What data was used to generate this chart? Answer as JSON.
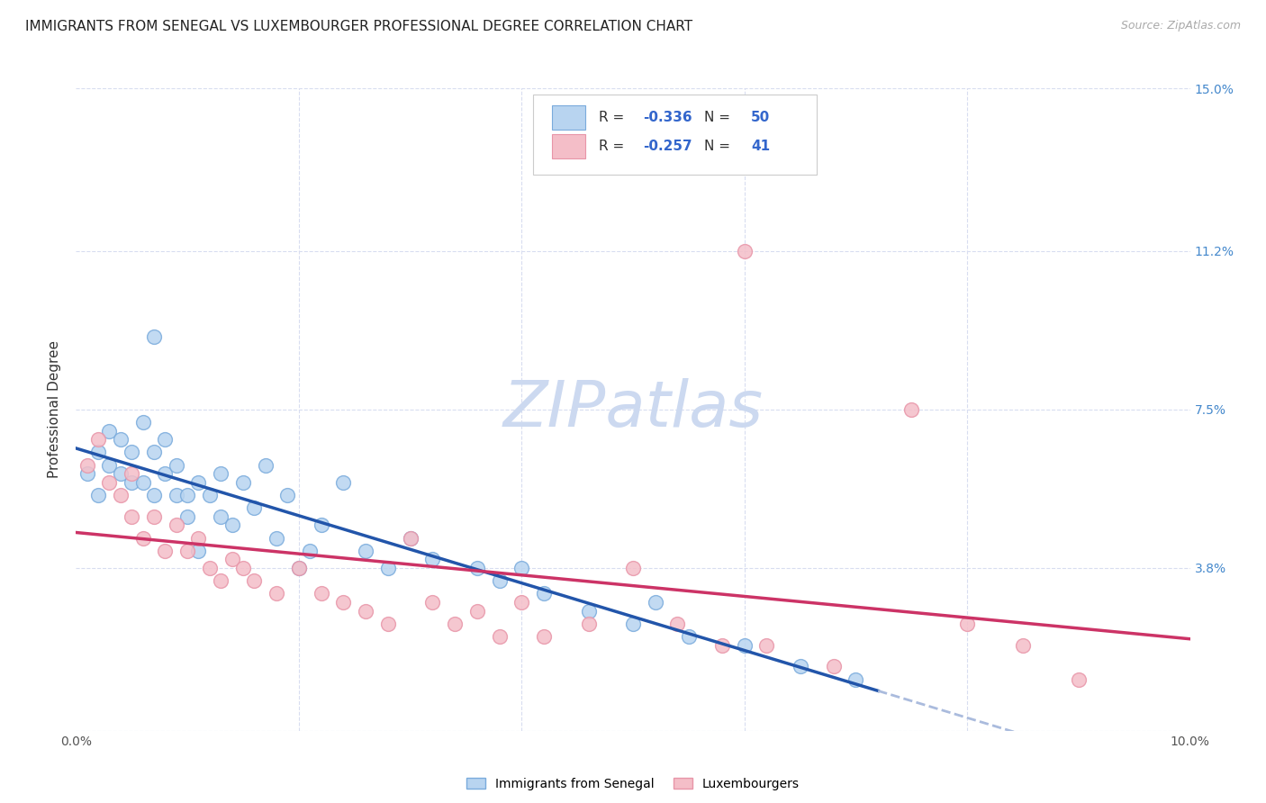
{
  "title": "IMMIGRANTS FROM SENEGAL VS LUXEMBOURGER PROFESSIONAL DEGREE CORRELATION CHART",
  "source": "Source: ZipAtlas.com",
  "ylabel": "Professional Degree",
  "x_min": 0.0,
  "x_max": 0.1,
  "y_min": 0.0,
  "y_max": 0.15,
  "x_ticks": [
    0.0,
    0.02,
    0.04,
    0.06,
    0.08,
    0.1
  ],
  "y_ticks": [
    0.0,
    0.038,
    0.075,
    0.112,
    0.15
  ],
  "y_tick_labels_right": [
    "",
    "3.8%",
    "7.5%",
    "11.2%",
    "15.0%"
  ],
  "legend_entries": [
    {
      "label": "Immigrants from Senegal",
      "color": "#b8d4f0",
      "border": "#7aabdc",
      "R": "-0.336",
      "N": "50"
    },
    {
      "label": "Luxembourgers",
      "color": "#f4bec8",
      "border": "#e895a8",
      "R": "-0.257",
      "N": "41"
    }
  ],
  "watermark": "ZIPatlas",
  "blue_scatter": [
    [
      0.001,
      0.06
    ],
    [
      0.002,
      0.065
    ],
    [
      0.002,
      0.055
    ],
    [
      0.003,
      0.062
    ],
    [
      0.003,
      0.07
    ],
    [
      0.004,
      0.06
    ],
    [
      0.004,
      0.068
    ],
    [
      0.005,
      0.058
    ],
    [
      0.005,
      0.065
    ],
    [
      0.006,
      0.072
    ],
    [
      0.006,
      0.058
    ],
    [
      0.007,
      0.065
    ],
    [
      0.007,
      0.055
    ],
    [
      0.008,
      0.06
    ],
    [
      0.008,
      0.068
    ],
    [
      0.009,
      0.055
    ],
    [
      0.009,
      0.062
    ],
    [
      0.01,
      0.05
    ],
    [
      0.01,
      0.055
    ],
    [
      0.011,
      0.058
    ],
    [
      0.011,
      0.042
    ],
    [
      0.012,
      0.055
    ],
    [
      0.013,
      0.05
    ],
    [
      0.013,
      0.06
    ],
    [
      0.014,
      0.048
    ],
    [
      0.015,
      0.058
    ],
    [
      0.016,
      0.052
    ],
    [
      0.017,
      0.062
    ],
    [
      0.018,
      0.045
    ],
    [
      0.019,
      0.055
    ],
    [
      0.02,
      0.038
    ],
    [
      0.021,
      0.042
    ],
    [
      0.022,
      0.048
    ],
    [
      0.024,
      0.058
    ],
    [
      0.026,
      0.042
    ],
    [
      0.028,
      0.038
    ],
    [
      0.03,
      0.045
    ],
    [
      0.032,
      0.04
    ],
    [
      0.036,
      0.038
    ],
    [
      0.038,
      0.035
    ],
    [
      0.04,
      0.038
    ],
    [
      0.042,
      0.032
    ],
    [
      0.046,
      0.028
    ],
    [
      0.05,
      0.025
    ],
    [
      0.052,
      0.03
    ],
    [
      0.055,
      0.022
    ],
    [
      0.06,
      0.02
    ],
    [
      0.065,
      0.015
    ],
    [
      0.07,
      0.012
    ],
    [
      0.007,
      0.092
    ]
  ],
  "pink_scatter": [
    [
      0.001,
      0.062
    ],
    [
      0.002,
      0.068
    ],
    [
      0.003,
      0.058
    ],
    [
      0.004,
      0.055
    ],
    [
      0.005,
      0.05
    ],
    [
      0.005,
      0.06
    ],
    [
      0.006,
      0.045
    ],
    [
      0.007,
      0.05
    ],
    [
      0.008,
      0.042
    ],
    [
      0.009,
      0.048
    ],
    [
      0.01,
      0.042
    ],
    [
      0.011,
      0.045
    ],
    [
      0.012,
      0.038
    ],
    [
      0.013,
      0.035
    ],
    [
      0.014,
      0.04
    ],
    [
      0.015,
      0.038
    ],
    [
      0.016,
      0.035
    ],
    [
      0.018,
      0.032
    ],
    [
      0.02,
      0.038
    ],
    [
      0.022,
      0.032
    ],
    [
      0.024,
      0.03
    ],
    [
      0.026,
      0.028
    ],
    [
      0.028,
      0.025
    ],
    [
      0.03,
      0.045
    ],
    [
      0.032,
      0.03
    ],
    [
      0.034,
      0.025
    ],
    [
      0.036,
      0.028
    ],
    [
      0.038,
      0.022
    ],
    [
      0.04,
      0.03
    ],
    [
      0.042,
      0.022
    ],
    [
      0.046,
      0.025
    ],
    [
      0.05,
      0.038
    ],
    [
      0.054,
      0.025
    ],
    [
      0.058,
      0.02
    ],
    [
      0.062,
      0.02
    ],
    [
      0.068,
      0.015
    ],
    [
      0.075,
      0.075
    ],
    [
      0.08,
      0.025
    ],
    [
      0.085,
      0.02
    ],
    [
      0.09,
      0.012
    ],
    [
      0.06,
      0.112
    ]
  ],
  "blue_line_color": "#2255aa",
  "pink_line_color": "#cc3366",
  "blue_dash_color": "#aabbdd",
  "grid_color": "#d8ddf0",
  "background_color": "#ffffff",
  "title_fontsize": 11,
  "source_fontsize": 9,
  "watermark_color": "#ccd9f0",
  "watermark_fontsize": 52,
  "blue_line_x_solid_end": 0.072,
  "blue_line_x_dash_start": 0.072,
  "blue_line_x_end": 0.1
}
